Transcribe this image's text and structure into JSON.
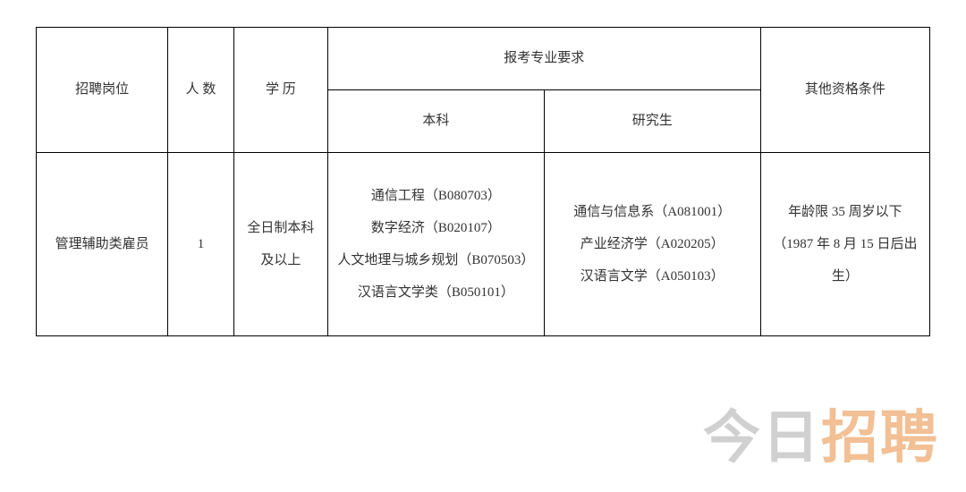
{
  "table": {
    "headers": {
      "position": "招聘岗位",
      "count": "人 数",
      "education": "学 历",
      "majorReq": "报考专业要求",
      "undergrad": "本科",
      "grad": "研究生",
      "other": "其他资格条件"
    },
    "row": {
      "position": "管理辅助类雇员",
      "count": "1",
      "education": "全日制本科及以上",
      "undergrad": "通信工程（B080703）\n数字经济（B020107）\n人文地理与城乡规划（B070503）\n汉语言文学类（B050101）",
      "grad": "通信与信息系（A081001）\n产业经济学（A020205）\n汉语言文学（A050103）",
      "other": "年龄限 35 周岁以下（1987 年 8 月 15 日后出生）"
    },
    "border_color": "#000000",
    "text_color": "#333333",
    "font_size": 15,
    "background_color": "#ffffff"
  },
  "watermark": {
    "part1": "今日",
    "part2": "招聘",
    "color_gray": "rgba(120,120,120,0.35)",
    "color_orange": "rgba(232,140,60,0.55)",
    "font_size": 64
  }
}
